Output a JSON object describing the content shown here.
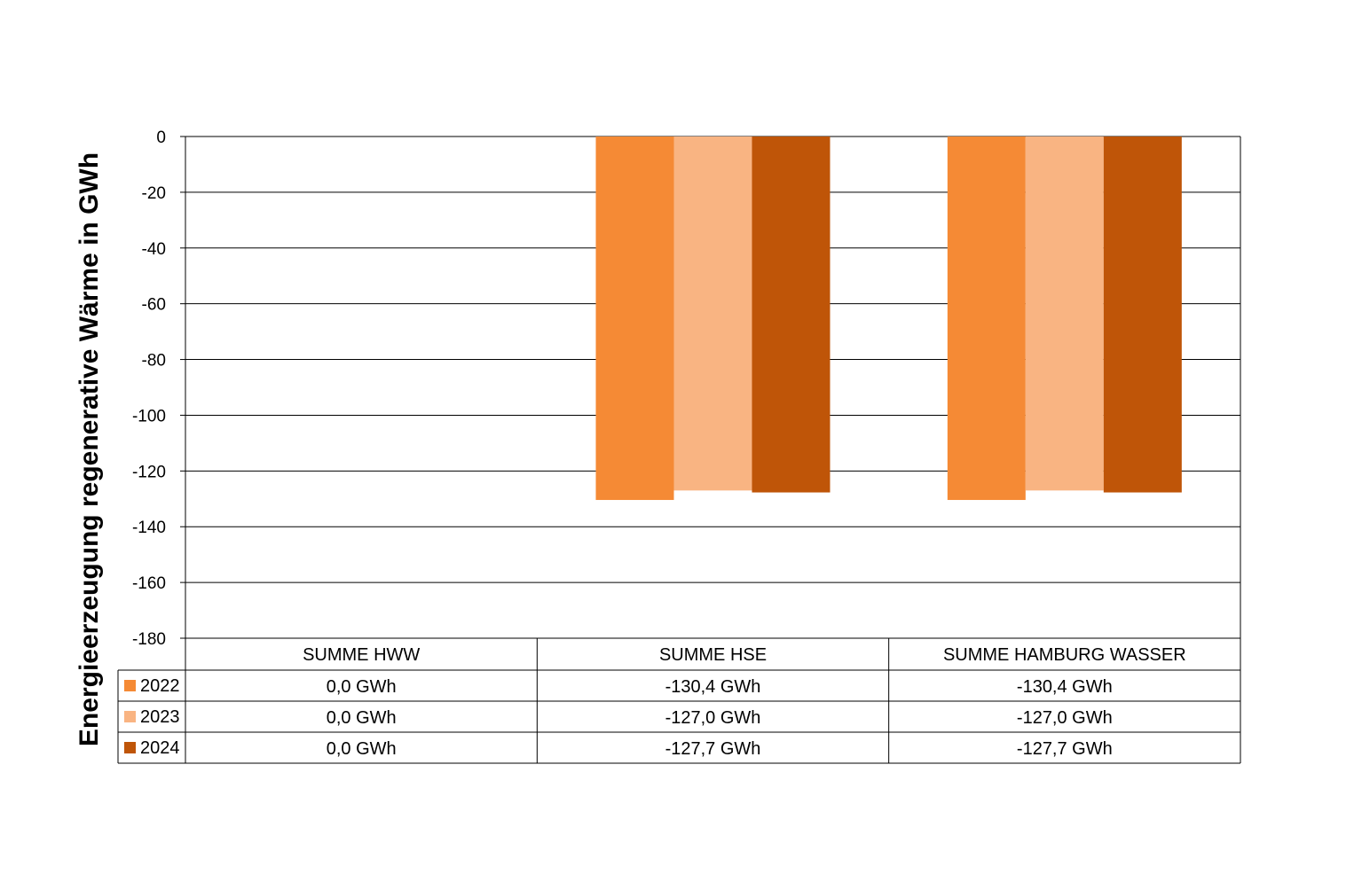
{
  "chart_data": {
    "type": "bar",
    "ylabel": "Energieerzeugung regenerative Wärme in GWh",
    "ylim": [
      -180,
      0
    ],
    "yticks": [
      0,
      -20,
      -40,
      -60,
      -80,
      -100,
      -120,
      -140,
      -160,
      -180
    ],
    "grid": true,
    "legend": "data-table-left",
    "categories": [
      "SUMME HWW",
      "SUMME HSE",
      "SUMME HAMBURG WASSER"
    ],
    "series": [
      {
        "name": "2022",
        "color": "#F58A35",
        "values": [
          0.0,
          -130.4,
          -130.4
        ],
        "labels": [
          "0,0 GWh",
          "-130,4 GWh",
          "-130,4 GWh"
        ]
      },
      {
        "name": "2023",
        "color": "#F9B482",
        "values": [
          0.0,
          -127.0,
          -127.0
        ],
        "labels": [
          "0,0 GWh",
          "-127,0 GWh",
          "-127,0 GWh"
        ]
      },
      {
        "name": "2024",
        "color": "#BF5508",
        "values": [
          0.0,
          -127.7,
          -127.7
        ],
        "labels": [
          "0,0 GWh",
          "-127,7 GWh",
          "-127,7 GWh"
        ]
      }
    ]
  }
}
